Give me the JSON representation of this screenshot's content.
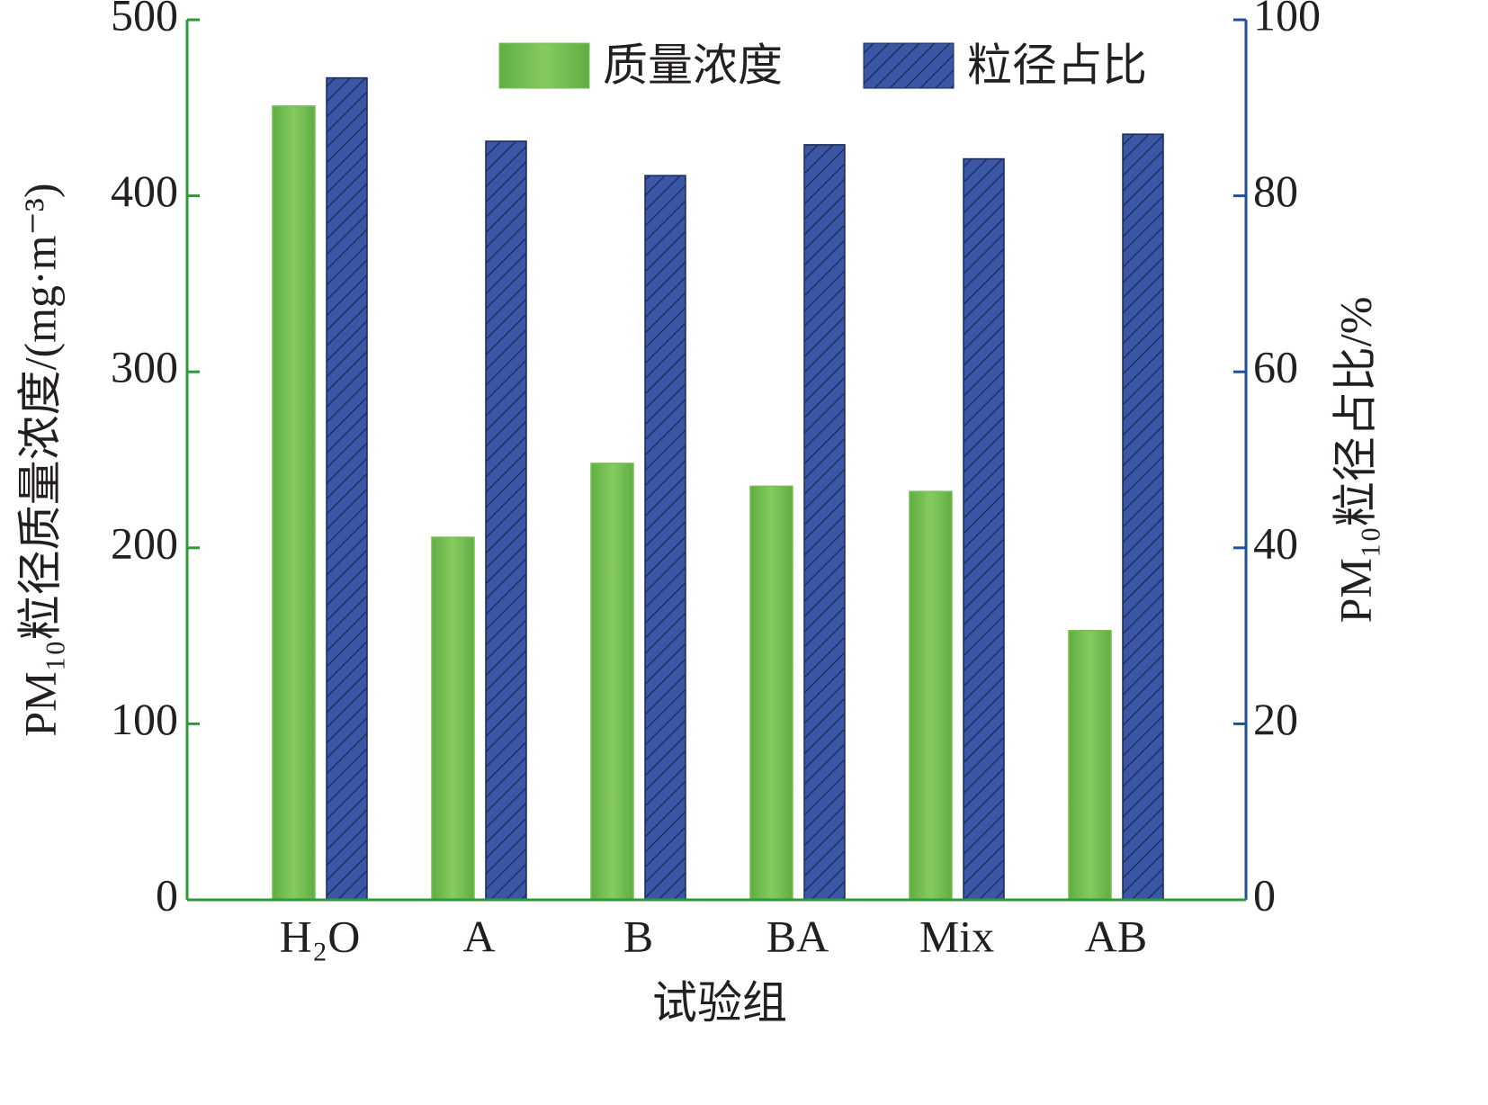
{
  "chart_data": {
    "type": "bar",
    "x_label": "试验组",
    "y_label": "PM₁₀粒径质量浓度/(mg·m⁻³)",
    "y2_label": "PM₁₀粒径占比/%",
    "categories": [
      "H₂O",
      "A",
      "B",
      "BA",
      "Mix",
      "AB"
    ],
    "series": [
      {
        "name": "质量浓度",
        "color": "#77bf52",
        "values": [
          451,
          206,
          248,
          235,
          232,
          153
        ]
      },
      {
        "name": "粒径占比",
        "color": "#3a56a5",
        "axis": "y2",
        "hatch": true,
        "values": [
          93.4,
          86.2,
          82.3,
          85.8,
          84.2,
          87.0
        ]
      }
    ],
    "ylim": [
      0,
      500
    ],
    "yticks": [
      0,
      100,
      200,
      300,
      400,
      500
    ],
    "y2lim": [
      0,
      100
    ],
    "y2ticks": [
      0,
      20,
      40,
      60,
      80,
      100
    ],
    "y_axis_color": "#2e9a3a",
    "y2_axis_color": "#1f4f9c",
    "legend": "top"
  }
}
